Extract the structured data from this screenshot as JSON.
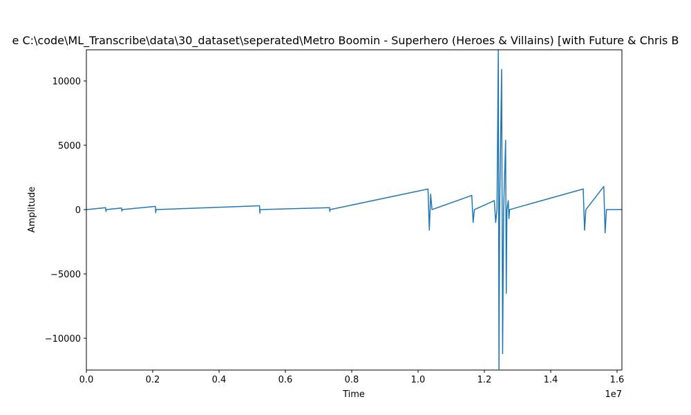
{
  "chart_data": {
    "type": "line",
    "title": "e C:\\code\\ML_Transcribe\\data\\30_dataset\\seperated\\Metro Boomin - Superhero (Heroes & Villains) [with Future & Chris B",
    "x_label": "Time",
    "y_label": "Amplitude",
    "x_offset_label": "1e7",
    "xlim": [
      0,
      16146000
    ],
    "ylim": [
      -12470,
      12420
    ],
    "xticks": [
      {
        "value": 0,
        "label": "0.0"
      },
      {
        "value": 2000000,
        "label": "0.2"
      },
      {
        "value": 4000000,
        "label": "0.4"
      },
      {
        "value": 6000000,
        "label": "0.6"
      },
      {
        "value": 8000000,
        "label": "0.8"
      },
      {
        "value": 10000000,
        "label": "1.0"
      },
      {
        "value": 12000000,
        "label": "1.2"
      },
      {
        "value": 14000000,
        "label": "1.4"
      },
      {
        "value": 16000000,
        "label": "1.6"
      }
    ],
    "yticks": [
      {
        "value": -10000,
        "label": "−10000"
      },
      {
        "value": -5000,
        "label": "−5000"
      },
      0,
      5000,
      10000
    ],
    "grid": false,
    "x": [
      0,
      580000,
      590000,
      600000,
      1060000,
      1070000,
      1080000,
      2080000,
      2090000,
      2100000,
      5220000,
      5230000,
      5240000,
      7330000,
      7340000,
      7350000,
      10300000,
      10340000,
      10380000,
      10420000,
      11620000,
      11660000,
      11700000,
      12300000,
      12340000,
      12380000,
      12420000,
      12440000,
      12460000,
      12520000,
      12550000,
      12580000,
      12640000,
      12660000,
      12680000,
      12720000,
      12740000,
      12760000,
      14980000,
      15020000,
      15060000,
      15600000,
      15640000,
      15680000,
      16146000
    ],
    "series": [
      {
        "color": "#1f77b4",
        "values": [
          0,
          150,
          -150,
          0,
          120,
          -120,
          0,
          250,
          -250,
          0,
          300,
          -280,
          0,
          150,
          -150,
          0,
          1600,
          -1600,
          1200,
          0,
          1100,
          -1000,
          0,
          700,
          -1000,
          0,
          12400,
          -12400,
          0,
          10900,
          -11200,
          0,
          5400,
          -6500,
          0,
          700,
          -700,
          0,
          1600,
          -1600,
          0,
          1800,
          -1800,
          0,
          0
        ]
      }
    ]
  }
}
